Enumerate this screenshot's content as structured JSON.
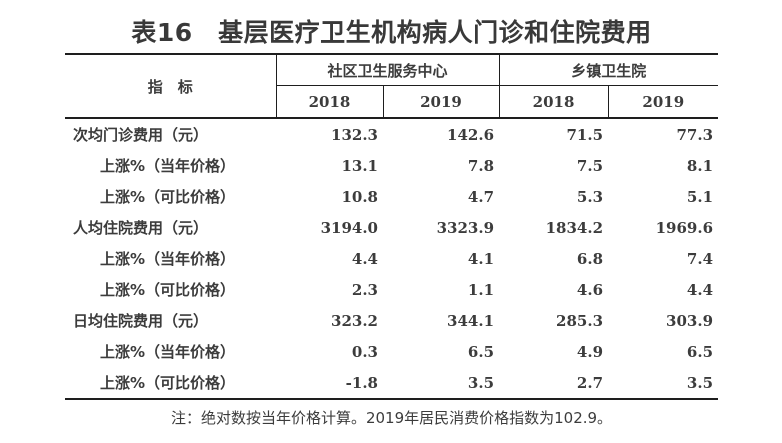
{
  "title": "表16　基层医疗卫生机构病人门诊和住院费用",
  "table": {
    "indicator_header": "指　标",
    "groups": [
      {
        "label": "社区卫生服务中心",
        "years": [
          "2018",
          "2019"
        ]
      },
      {
        "label": "乡镇卫生院",
        "years": [
          "2018",
          "2019"
        ]
      }
    ],
    "rows": [
      {
        "label": "次均门诊费用（元）",
        "values": [
          "132.3",
          "142.6",
          "71.5",
          "77.3"
        ]
      },
      {
        "label": "上涨%（当年价格）",
        "values": [
          "13.1",
          "7.8",
          "7.5",
          "8.1"
        ]
      },
      {
        "label": "上涨%（可比价格）",
        "values": [
          "10.8",
          "4.7",
          "5.3",
          "5.1"
        ]
      },
      {
        "label": "人均住院费用（元）",
        "values": [
          "3194.0",
          "3323.9",
          "1834.2",
          "1969.6"
        ]
      },
      {
        "label": "上涨%（当年价格）",
        "values": [
          "4.4",
          "4.1",
          "6.8",
          "7.4"
        ]
      },
      {
        "label": "上涨%（可比价格）",
        "values": [
          "2.3",
          "1.1",
          "4.6",
          "4.4"
        ]
      },
      {
        "label": "日均住院费用（元）",
        "values": [
          "323.2",
          "344.1",
          "285.3",
          "303.9"
        ]
      },
      {
        "label": "上涨%（当年价格）",
        "values": [
          "0.3",
          "6.5",
          "4.9",
          "6.5"
        ]
      },
      {
        "label": "上涨%（可比价格）",
        "values": [
          "-1.8",
          "3.5",
          "2.7",
          "3.5"
        ]
      }
    ]
  },
  "note": "注：绝对数按当年价格计算。2019年居民消费价格指数为102.9。",
  "colors": {
    "text": "#3c3c3c",
    "rule": "#1e1e1e",
    "background": "#ffffff"
  }
}
